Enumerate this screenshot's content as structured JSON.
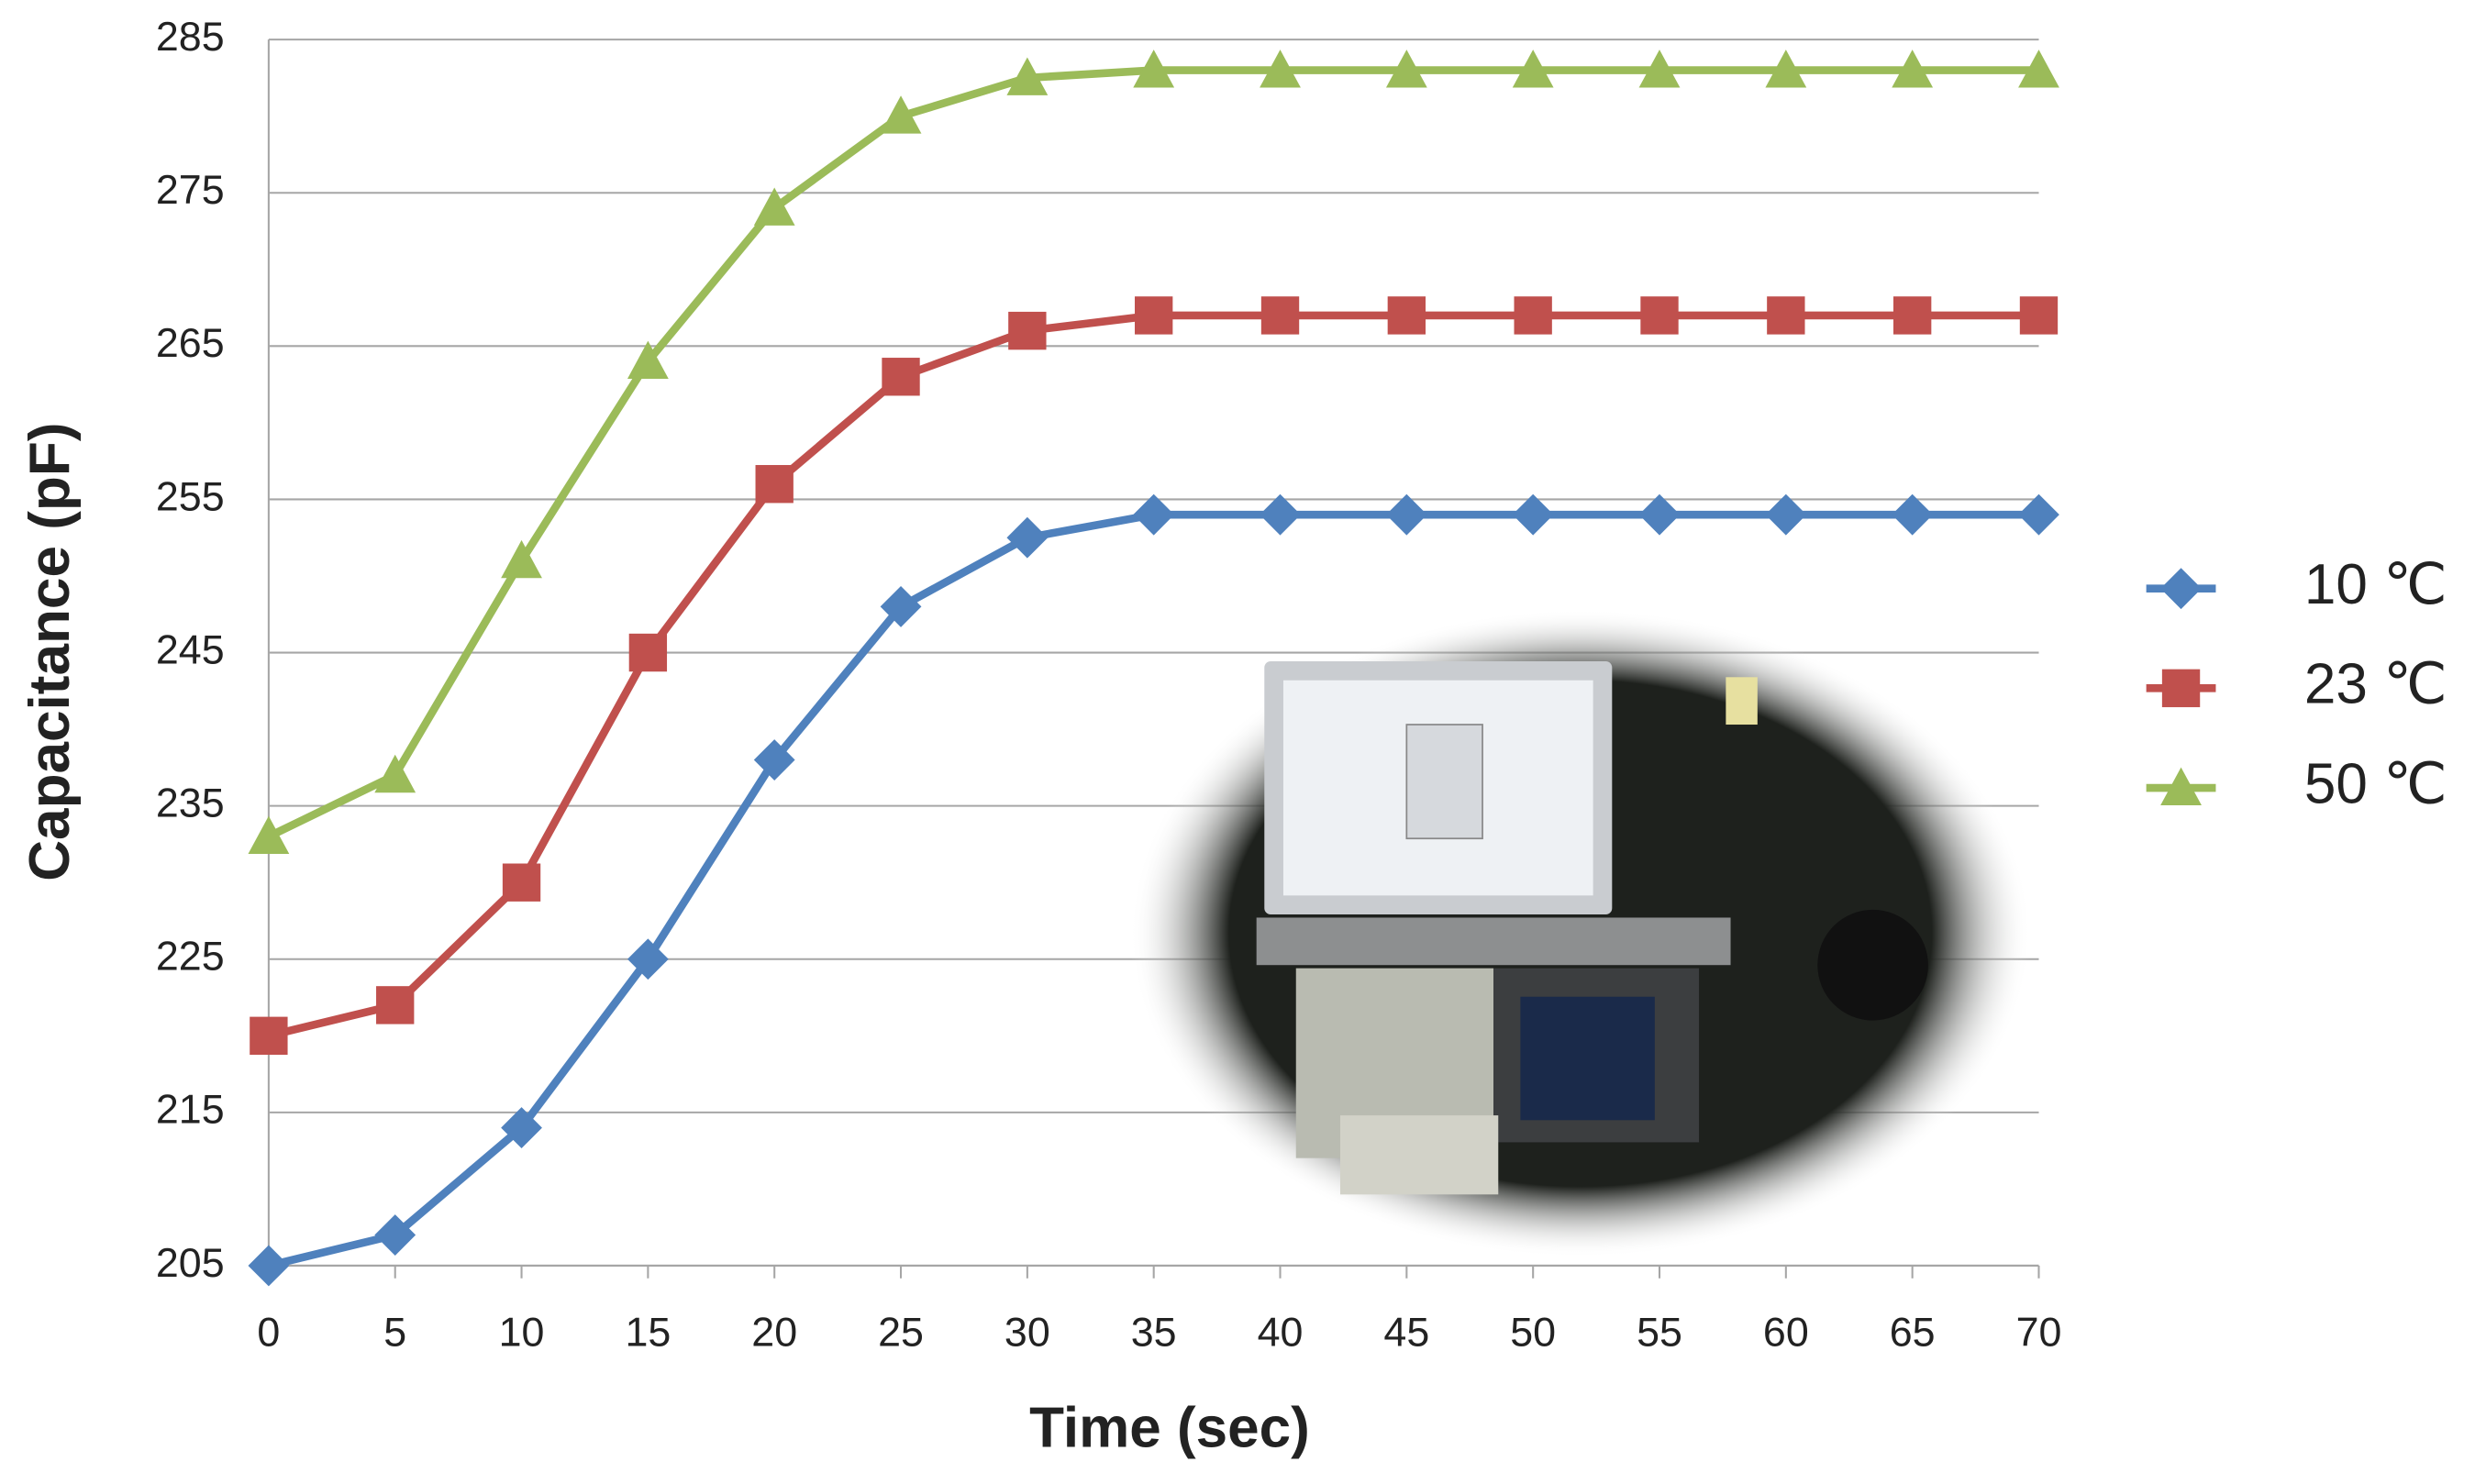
{
  "chart_data": {
    "type": "line",
    "x_label": "Time (sec)",
    "y_label": "Capacitance (pF)",
    "x": [
      0,
      5,
      10,
      15,
      20,
      25,
      30,
      35,
      40,
      45,
      50,
      55,
      60,
      65,
      70
    ],
    "xlim": [
      0,
      70
    ],
    "xticks": [
      0,
      5,
      10,
      15,
      20,
      25,
      30,
      35,
      40,
      45,
      50,
      55,
      60,
      65,
      70
    ],
    "ylim": [
      205,
      285
    ],
    "yticks": [
      205,
      215,
      225,
      235,
      245,
      255,
      265,
      275,
      285
    ],
    "grid": true,
    "legend": "right",
    "series": [
      {
        "name": "10 ℃",
        "color": "#4f81bd",
        "marker": "diamond",
        "values": [
          205,
          207,
          214,
          225,
          238,
          248,
          252.5,
          254,
          254,
          254,
          254,
          254,
          254,
          254,
          254
        ]
      },
      {
        "name": "23 ℃",
        "color": "#c0504d",
        "marker": "square",
        "values": [
          220,
          222,
          230,
          245,
          256,
          263,
          266,
          267,
          267,
          267,
          267,
          267,
          267,
          267,
          267
        ]
      },
      {
        "name": "50 ℃",
        "color": "#9bbb59",
        "marker": "triangle",
        "values": [
          233,
          237,
          251,
          264,
          274,
          280,
          282.5,
          283,
          283,
          283,
          283,
          283,
          283,
          283,
          283
        ]
      }
    ]
  }
}
